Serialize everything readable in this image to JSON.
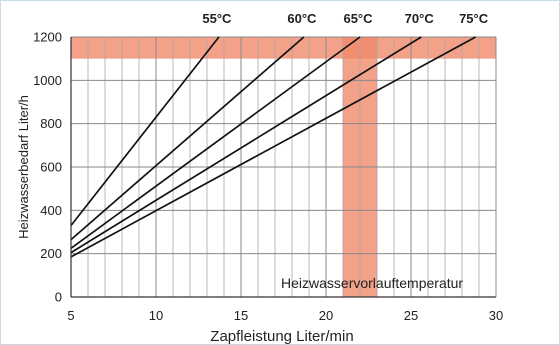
{
  "chart_data": {
    "type": "line",
    "title": "",
    "xlabel": "Zapfleistung Liter/min",
    "ylabel": "Heizwasserbedarf Liter/h",
    "xlim": [
      5,
      30
    ],
    "ylim": [
      0,
      1200
    ],
    "x_ticks": [
      5,
      10,
      15,
      20,
      25,
      30
    ],
    "y_ticks": [
      0,
      200,
      400,
      600,
      800,
      1000,
      1200
    ],
    "x_minor_step": 1,
    "grid": true,
    "annotation": "Heizwasservorlauftemperatur",
    "highlight": {
      "vertical_band_x": [
        21,
        23
      ],
      "horizontal_band_y": [
        1100,
        1200
      ],
      "color": "#f08a6a"
    },
    "series": [
      {
        "name": "55°C",
        "x": [
          5,
          13.7
        ],
        "y": [
          330,
          1200
        ]
      },
      {
        "name": "60°C",
        "x": [
          5,
          18.7
        ],
        "y": [
          265,
          1200
        ]
      },
      {
        "name": "65°C",
        "x": [
          5,
          22.0
        ],
        "y": [
          225,
          1200
        ]
      },
      {
        "name": "70°C",
        "x": [
          5,
          25.6
        ],
        "y": [
          205,
          1200
        ]
      },
      {
        "name": "75°C",
        "x": [
          5,
          28.8
        ],
        "y": [
          185,
          1200
        ]
      }
    ]
  }
}
